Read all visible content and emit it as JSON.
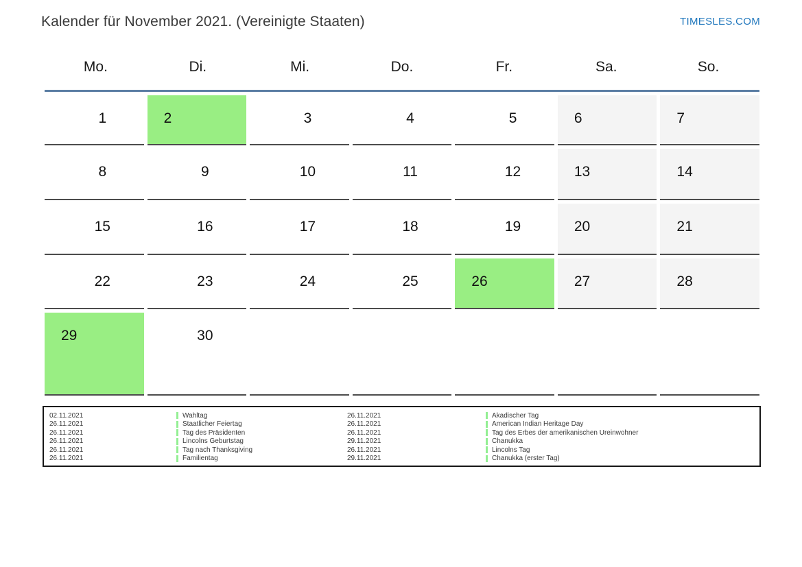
{
  "header": {
    "title": "Kalender für November 2021. (Vereinigte Staaten)",
    "site_link": "TIMESLES.COM"
  },
  "calendar": {
    "weekday_headers": [
      "Mo.",
      "Di.",
      "Mi.",
      "Do.",
      "Fr.",
      "Sa.",
      "So."
    ],
    "weeks": [
      [
        {
          "day": "1",
          "type": "weekday"
        },
        {
          "day": "2",
          "type": "holiday"
        },
        {
          "day": "3",
          "type": "weekday"
        },
        {
          "day": "4",
          "type": "weekday"
        },
        {
          "day": "5",
          "type": "weekday"
        },
        {
          "day": "6",
          "type": "weekend"
        },
        {
          "day": "7",
          "type": "weekend"
        }
      ],
      [
        {
          "day": "8",
          "type": "weekday"
        },
        {
          "day": "9",
          "type": "weekday"
        },
        {
          "day": "10",
          "type": "weekday"
        },
        {
          "day": "11",
          "type": "weekday"
        },
        {
          "day": "12",
          "type": "weekday"
        },
        {
          "day": "13",
          "type": "weekend"
        },
        {
          "day": "14",
          "type": "weekend"
        }
      ],
      [
        {
          "day": "15",
          "type": "weekday"
        },
        {
          "day": "16",
          "type": "weekday"
        },
        {
          "day": "17",
          "type": "weekday"
        },
        {
          "day": "18",
          "type": "weekday"
        },
        {
          "day": "19",
          "type": "weekday"
        },
        {
          "day": "20",
          "type": "weekend"
        },
        {
          "day": "21",
          "type": "weekend"
        }
      ],
      [
        {
          "day": "22",
          "type": "weekday"
        },
        {
          "day": "23",
          "type": "weekday"
        },
        {
          "day": "24",
          "type": "weekday"
        },
        {
          "day": "25",
          "type": "weekday"
        },
        {
          "day": "26",
          "type": "holiday"
        },
        {
          "day": "27",
          "type": "weekend"
        },
        {
          "day": "28",
          "type": "weekend"
        }
      ],
      [
        {
          "day": "29",
          "type": "holiday"
        },
        {
          "day": "30",
          "type": "weekday"
        },
        {
          "day": "",
          "type": "empty"
        },
        {
          "day": "",
          "type": "empty"
        },
        {
          "day": "",
          "type": "empty"
        },
        {
          "day": "",
          "type": "empty"
        },
        {
          "day": "",
          "type": "empty"
        }
      ]
    ]
  },
  "legend": {
    "rows": [
      {
        "date_left": "02.11.2021",
        "label_left": "Wahltag",
        "date_right": "26.11.2021",
        "label_right": "Akadischer Tag"
      },
      {
        "date_left": "26.11.2021",
        "label_left": "Staatlicher Feiertag",
        "date_right": "26.11.2021",
        "label_right": "American Indian Heritage Day"
      },
      {
        "date_left": "26.11.2021",
        "label_left": "Tag des Präsidenten",
        "date_right": "26.11.2021",
        "label_right": "Tag des Erbes der amerikanischen Ureinwohner"
      },
      {
        "date_left": "26.11.2021",
        "label_left": "Lincolns Geburtstag",
        "date_right": "29.11.2021",
        "label_right": "Chanukka"
      },
      {
        "date_left": "26.11.2021",
        "label_left": "Tag nach Thanksgiving",
        "date_right": "26.11.2021",
        "label_right": "Lincolns Tag"
      },
      {
        "date_left": "26.11.2021",
        "label_left": "Familientag",
        "date_right": "29.11.2021",
        "label_right": "Chanukka (erster Tag)"
      }
    ]
  },
  "colors": {
    "holiday_green": "#99ee83",
    "weekend_gray": "#f4f4f4",
    "header_rule_blue": "#5b7ea4",
    "cell_border": "#4c4c4c",
    "legend_bar_green": "#93ef93",
    "link_blue": "#2077bd"
  }
}
